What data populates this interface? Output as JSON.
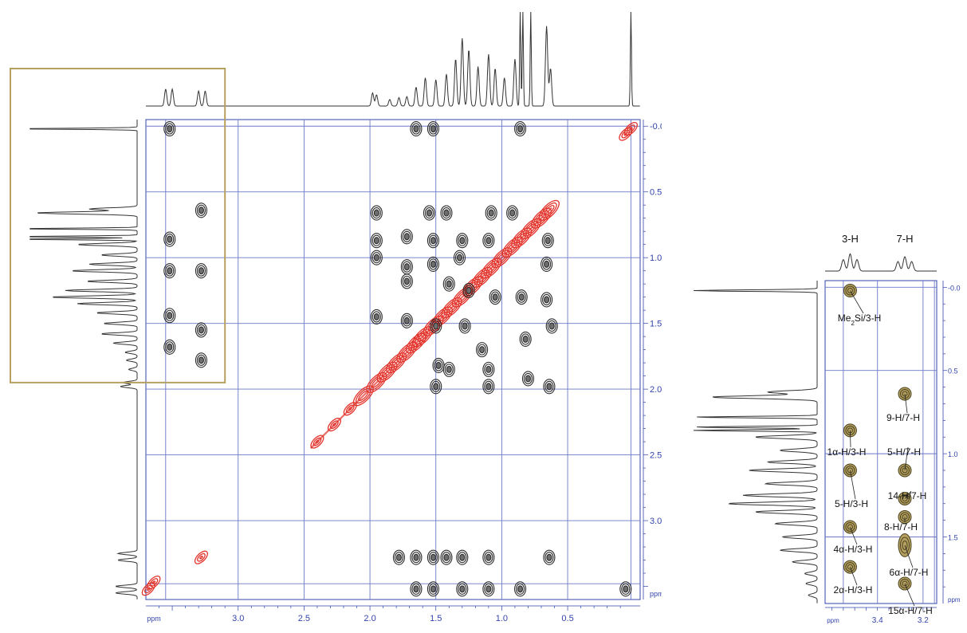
{
  "chart_data": [
    {
      "type": "heatmap",
      "kind": "2D COSY NMR spectrum with 1D projections",
      "title": "",
      "xlabel": "ppm",
      "ylabel": "ppm",
      "x_axis": {
        "reversed": true,
        "range": [
          3.7,
          -0.05
        ],
        "ticks": [
          3.0,
          2.5,
          2.0,
          1.5,
          1.0,
          0.5
        ],
        "tick_labels": [
          "3.0",
          "2.5",
          "2.0",
          "1.5",
          "1.0",
          "0.5"
        ]
      },
      "y_axis": {
        "position": "right",
        "range": [
          -0.05,
          3.6
        ],
        "ticks": [
          0.0,
          0.5,
          1.0,
          1.5,
          2.0,
          2.5,
          3.0
        ],
        "tick_labels": [
          "-0.0",
          "0.5",
          "1.0",
          "1.5",
          "2.0",
          "2.5",
          "3.0"
        ]
      },
      "grid": true,
      "colors": {
        "grid": "#6b78c8",
        "frame": "#3344aa",
        "positive_contour": "#2b2b2b",
        "negative_contour": "#e2332b",
        "highlight_box": "#b5a060"
      },
      "highlight_box": {
        "x_range": [
          3.7,
          3.1
        ],
        "y_range": [
          -0.1,
          1.95
        ]
      },
      "diagonal_peaks": [
        [
          3.68,
          3.52
        ],
        [
          3.64,
          3.47
        ],
        [
          3.28,
          3.28
        ],
        [
          2.4,
          2.4
        ],
        [
          2.27,
          2.27
        ],
        [
          2.15,
          2.15
        ],
        [
          2.05,
          2.05
        ],
        [
          1.95,
          1.95
        ],
        [
          1.87,
          1.87
        ],
        [
          1.8,
          1.8
        ],
        [
          1.72,
          1.72
        ],
        [
          1.65,
          1.65
        ],
        [
          1.6,
          1.6
        ],
        [
          1.52,
          1.52
        ],
        [
          1.45,
          1.45
        ],
        [
          1.38,
          1.38
        ],
        [
          1.3,
          1.3
        ],
        [
          1.22,
          1.22
        ],
        [
          1.15,
          1.15
        ],
        [
          1.08,
          1.08
        ],
        [
          1.0,
          1.0
        ],
        [
          0.92,
          0.92
        ],
        [
          0.85,
          0.85
        ],
        [
          0.78,
          0.78
        ],
        [
          0.7,
          0.7
        ],
        [
          0.64,
          0.64
        ],
        [
          0.06,
          0.06
        ],
        [
          0.02,
          0.02
        ]
      ],
      "cross_peaks": [
        {
          "x": 3.52,
          "y": 0.02
        },
        {
          "x": 3.52,
          "y": 0.86
        },
        {
          "x": 3.52,
          "y": 1.1
        },
        {
          "x": 3.52,
          "y": 1.44
        },
        {
          "x": 3.52,
          "y": 1.68
        },
        {
          "x": 3.28,
          "y": 0.64
        },
        {
          "x": 3.28,
          "y": 1.1
        },
        {
          "x": 3.28,
          "y": 1.55
        },
        {
          "x": 3.28,
          "y": 1.78
        },
        {
          "x": 1.65,
          "y": 0.02
        },
        {
          "x": 1.52,
          "y": 0.02
        },
        {
          "x": 0.86,
          "y": 0.02
        },
        {
          "x": 1.95,
          "y": 0.66
        },
        {
          "x": 1.95,
          "y": 0.87
        },
        {
          "x": 1.95,
          "y": 1.0
        },
        {
          "x": 1.95,
          "y": 1.45
        },
        {
          "x": 1.72,
          "y": 0.84
        },
        {
          "x": 1.72,
          "y": 1.07
        },
        {
          "x": 1.72,
          "y": 1.18
        },
        {
          "x": 1.72,
          "y": 1.48
        },
        {
          "x": 1.55,
          "y": 0.66
        },
        {
          "x": 1.52,
          "y": 0.87
        },
        {
          "x": 1.52,
          "y": 1.05
        },
        {
          "x": 1.5,
          "y": 1.52
        },
        {
          "x": 1.48,
          "y": 1.82
        },
        {
          "x": 1.5,
          "y": 1.98
        },
        {
          "x": 1.42,
          "y": 0.66
        },
        {
          "x": 1.3,
          "y": 0.87
        },
        {
          "x": 1.32,
          "y": 1.0
        },
        {
          "x": 1.4,
          "y": 1.2
        },
        {
          "x": 1.4,
          "y": 1.85
        },
        {
          "x": 1.25,
          "y": 1.25
        },
        {
          "x": 1.28,
          "y": 1.52
        },
        {
          "x": 1.15,
          "y": 1.7
        },
        {
          "x": 1.05,
          "y": 1.3
        },
        {
          "x": 1.08,
          "y": 0.66
        },
        {
          "x": 1.1,
          "y": 0.87
        },
        {
          "x": 1.1,
          "y": 1.85
        },
        {
          "x": 1.1,
          "y": 1.98
        },
        {
          "x": 0.92,
          "y": 0.66
        },
        {
          "x": 0.85,
          "y": 1.3
        },
        {
          "x": 0.82,
          "y": 1.62
        },
        {
          "x": 0.8,
          "y": 1.92
        },
        {
          "x": 0.65,
          "y": 0.87
        },
        {
          "x": 0.66,
          "y": 1.05
        },
        {
          "x": 0.66,
          "y": 1.32
        },
        {
          "x": 0.62,
          "y": 1.52
        },
        {
          "x": 0.64,
          "y": 1.98
        },
        {
          "x": 1.78,
          "y": 3.28
        },
        {
          "x": 1.65,
          "y": 3.28
        },
        {
          "x": 1.52,
          "y": 3.28
        },
        {
          "x": 1.42,
          "y": 3.28
        },
        {
          "x": 1.3,
          "y": 3.28
        },
        {
          "x": 1.1,
          "y": 3.28
        },
        {
          "x": 0.64,
          "y": 3.28
        },
        {
          "x": 1.65,
          "y": 3.52
        },
        {
          "x": 1.52,
          "y": 3.52
        },
        {
          "x": 1.3,
          "y": 3.52
        },
        {
          "x": 1.1,
          "y": 3.52
        },
        {
          "x": 0.86,
          "y": 3.52
        },
        {
          "x": 0.06,
          "y": 3.52
        }
      ],
      "top_projection_peaks": [
        {
          "ppm": 3.55,
          "height": 0.18
        },
        {
          "ppm": 3.5,
          "height": 0.18
        },
        {
          "ppm": 3.3,
          "height": 0.16
        },
        {
          "ppm": 3.25,
          "height": 0.16
        },
        {
          "ppm": 1.98,
          "height": 0.14
        },
        {
          "ppm": 1.95,
          "height": 0.12
        },
        {
          "ppm": 1.85,
          "height": 0.07
        },
        {
          "ppm": 1.78,
          "height": 0.09
        },
        {
          "ppm": 1.72,
          "height": 0.1
        },
        {
          "ppm": 1.65,
          "height": 0.2
        },
        {
          "ppm": 1.58,
          "height": 0.3
        },
        {
          "ppm": 1.5,
          "height": 0.28
        },
        {
          "ppm": 1.42,
          "height": 0.34
        },
        {
          "ppm": 1.35,
          "height": 0.5
        },
        {
          "ppm": 1.3,
          "height": 0.72
        },
        {
          "ppm": 1.25,
          "height": 0.6
        },
        {
          "ppm": 1.18,
          "height": 0.42
        },
        {
          "ppm": 1.1,
          "height": 0.55
        },
        {
          "ppm": 1.05,
          "height": 0.4
        },
        {
          "ppm": 0.98,
          "height": 0.3
        },
        {
          "ppm": 0.9,
          "height": 0.5
        },
        {
          "ppm": 0.86,
          "height": 1.0
        },
        {
          "ppm": 0.84,
          "height": 1.0
        },
        {
          "ppm": 0.78,
          "height": 1.0
        },
        {
          "ppm": 0.66,
          "height": 0.85
        },
        {
          "ppm": 0.63,
          "height": 0.4
        },
        {
          "ppm": 0.02,
          "height": 1.0
        }
      ]
    },
    {
      "type": "heatmap",
      "kind": "COSY expansion (region of 3-H and 7-H)",
      "title": "",
      "xlabel": "ppm",
      "ylabel": "ppm",
      "x_axis": {
        "reversed": true,
        "range": [
          3.63,
          3.14
        ],
        "ticks": [
          3.4,
          3.2
        ],
        "tick_labels": [
          "3.4",
          "3.2"
        ]
      },
      "y_axis": {
        "position": "right",
        "range": [
          -0.04,
          1.9
        ],
        "ticks": [
          0.0,
          0.5,
          1.0,
          1.5
        ],
        "tick_labels": [
          "-0.0",
          "0.5",
          "1.0",
          "1.5"
        ]
      },
      "grid": true,
      "colors": {
        "grid": "#6b78c8",
        "frame": "#3344aa",
        "peak_fill": "#b5a060",
        "peak_stroke": "#4a4320"
      },
      "column_labels": [
        {
          "text": "3-H",
          "ppm": 3.52
        },
        {
          "text": "7-H",
          "ppm": 3.28
        }
      ],
      "peaks": [
        {
          "x": 3.52,
          "y": 0.02,
          "label": "Me2Si/3-H"
        },
        {
          "x": 3.52,
          "y": 0.86,
          "label": "1α-H/3-H"
        },
        {
          "x": 3.52,
          "y": 1.1,
          "label": "5-H/3-H"
        },
        {
          "x": 3.52,
          "y": 1.44,
          "label": "4α-H/3-H"
        },
        {
          "x": 3.52,
          "y": 1.68,
          "label": "2α-H/3-H"
        },
        {
          "x": 3.28,
          "y": 0.64,
          "label": "9-H/7-H"
        },
        {
          "x": 3.28,
          "y": 1.1,
          "label": "5-H/7-H"
        },
        {
          "x": 3.28,
          "y": 1.27,
          "label": "14-H/7-H"
        },
        {
          "x": 3.28,
          "y": 1.38,
          "label": "8-H/7-H"
        },
        {
          "x": 3.28,
          "y": 1.55,
          "label": "6α-H/7-H"
        },
        {
          "x": 3.28,
          "y": 1.78,
          "label": "15α-H/7-H"
        }
      ],
      "top_projection_peaks": [
        {
          "ppm": 3.55,
          "height": 0.6
        },
        {
          "ppm": 3.52,
          "height": 0.9
        },
        {
          "ppm": 3.49,
          "height": 0.6
        },
        {
          "ppm": 3.31,
          "height": 0.5
        },
        {
          "ppm": 3.28,
          "height": 0.75
        },
        {
          "ppm": 3.25,
          "height": 0.5
        }
      ]
    }
  ]
}
